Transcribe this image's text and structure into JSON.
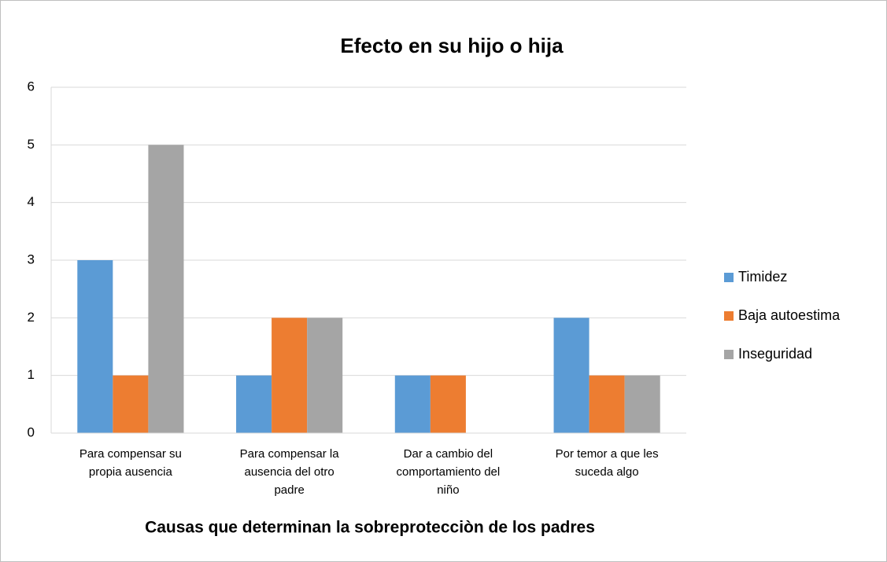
{
  "chart_data": {
    "type": "bar",
    "title": "Efecto en su hijo o hija",
    "x_label": "Causas que determinan la sobreprotecciòn de los padres",
    "categories": [
      "Para compensar su propia ausencia",
      "Para compensar la ausencia del otro padre",
      "Dar a cambio del comportamiento del niño",
      "Por temor a que les suceda algo"
    ],
    "series": [
      {
        "name": "Timidez",
        "color": "#5b9bd5",
        "values": [
          3,
          1,
          1,
          2
        ]
      },
      {
        "name": "Baja autoestima",
        "color": "#ed7d31",
        "values": [
          1,
          2,
          1,
          1
        ]
      },
      {
        "name": "Inseguridad",
        "color": "#a5a5a5",
        "values": [
          5,
          2,
          0,
          1
        ]
      }
    ],
    "ylim": [
      0,
      6
    ],
    "yticks": [
      0,
      1,
      2,
      3,
      4,
      5,
      6
    ],
    "grid": true,
    "legend": "right"
  }
}
